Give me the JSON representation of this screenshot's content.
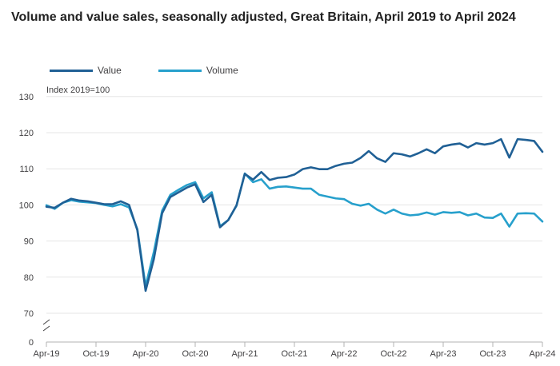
{
  "title": "Volume and value sales, seasonally adjusted, Great Britain, April 2019 to April 2024",
  "colors": {
    "value": "#206095",
    "volume": "#27a0cc",
    "grid": "#e6e6e6",
    "axis": "#b3b3b3"
  },
  "chart_data": {
    "type": "line",
    "title": "Volume and value sales, seasonally adjusted, Great Britain, April 2019 to April 2024",
    "ylabel": "Index 2019=100",
    "xlabel": "",
    "ylim": [
      0,
      130
    ],
    "axis_break": [
      70,
      0
    ],
    "yticks": [
      0,
      70,
      80,
      90,
      100,
      110,
      120,
      130
    ],
    "x_tick_labels": [
      "Apr-19",
      "Oct-19",
      "Apr-20",
      "Oct-20",
      "Apr-21",
      "Oct-21",
      "Apr-22",
      "Oct-22",
      "Apr-23",
      "Oct-23",
      "Apr-24"
    ],
    "x": [
      "Apr-19",
      "May-19",
      "Jun-19",
      "Jul-19",
      "Aug-19",
      "Sep-19",
      "Oct-19",
      "Nov-19",
      "Dec-19",
      "Jan-20",
      "Feb-20",
      "Mar-20",
      "Apr-20",
      "May-20",
      "Jun-20",
      "Jul-20",
      "Aug-20",
      "Sep-20",
      "Oct-20",
      "Nov-20",
      "Dec-20",
      "Jan-21",
      "Feb-21",
      "Mar-21",
      "Apr-21",
      "May-21",
      "Jun-21",
      "Jul-21",
      "Aug-21",
      "Sep-21",
      "Oct-21",
      "Nov-21",
      "Dec-21",
      "Jan-22",
      "Feb-22",
      "Mar-22",
      "Apr-22",
      "May-22",
      "Jun-22",
      "Jul-22",
      "Aug-22",
      "Sep-22",
      "Oct-22",
      "Nov-22",
      "Dec-22",
      "Jan-23",
      "Feb-23",
      "Mar-23",
      "Apr-23",
      "May-23",
      "Jun-23",
      "Jul-23",
      "Aug-23",
      "Sep-23",
      "Oct-23",
      "Nov-23",
      "Dec-23",
      "Jan-24",
      "Feb-24",
      "Mar-24",
      "Apr-24"
    ],
    "grid": true,
    "legend_position": "top-left",
    "series": [
      {
        "name": "Value",
        "color": "#206095",
        "values": [
          99.5,
          99.2,
          100.6,
          101.7,
          101.2,
          101.0,
          100.6,
          100.2,
          100.2,
          101.0,
          100.0,
          93.0,
          76.2,
          85.0,
          97.7,
          102.2,
          103.5,
          104.8,
          105.7,
          100.8,
          102.8,
          93.8,
          95.8,
          99.9,
          108.6,
          107.0,
          109.1,
          106.9,
          107.5,
          107.7,
          108.4,
          109.9,
          110.4,
          109.9,
          109.9,
          110.8,
          111.4,
          111.7,
          113.0,
          114.9,
          112.9,
          111.9,
          114.3,
          114.0,
          113.4,
          114.3,
          115.4,
          114.3,
          116.2,
          116.7,
          117.0,
          115.9,
          117.1,
          116.7,
          117.1,
          118.2,
          113.1,
          118.2,
          118.0,
          117.7,
          114.7
        ]
      },
      {
        "name": "Volume",
        "color": "#27a0cc",
        "values": [
          99.9,
          98.9,
          100.6,
          101.3,
          100.9,
          100.7,
          100.5,
          100.0,
          99.6,
          100.2,
          99.3,
          93.3,
          77.5,
          87.0,
          98.4,
          102.8,
          104.2,
          105.5,
          106.3,
          101.8,
          103.5,
          94.1,
          95.8,
          99.8,
          108.7,
          106.3,
          107.1,
          104.5,
          105.0,
          105.1,
          104.8,
          104.5,
          104.5,
          102.8,
          102.3,
          101.8,
          101.6,
          100.3,
          99.8,
          100.3,
          98.7,
          97.6,
          98.7,
          97.6,
          97.1,
          97.3,
          97.9,
          97.3,
          98.0,
          97.8,
          98.0,
          97.1,
          97.6,
          96.5,
          96.4,
          97.6,
          94.0,
          97.6,
          97.7,
          97.6,
          95.4
        ]
      }
    ]
  }
}
